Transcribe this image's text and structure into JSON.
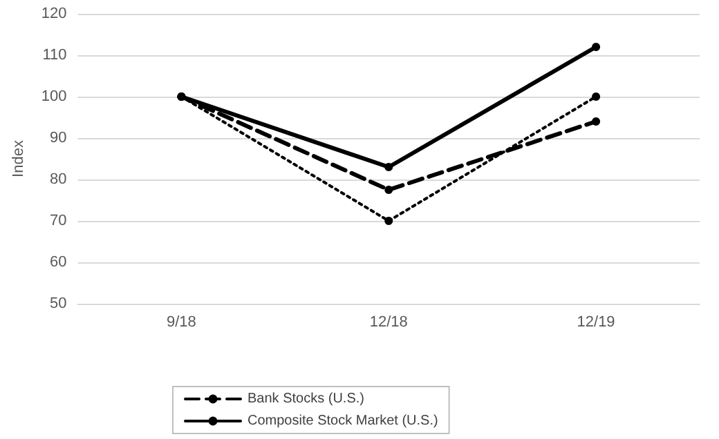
{
  "chart_data": {
    "type": "line",
    "ylabel": "Index",
    "categories": [
      "9/18",
      "12/18",
      "12/19"
    ],
    "series": [
      {
        "color": "#000000",
        "line_style": "dotted",
        "values": [
          100,
          70,
          100
        ]
      },
      {
        "name": "Bank Stocks (U.S.)",
        "color": "#000000",
        "line_style": "dashed",
        "values": [
          100,
          77.5,
          94
        ]
      },
      {
        "name": "Composite Stock Market (U.S.)",
        "color": "#000000",
        "line_style": "solid",
        "values": [
          100,
          83,
          112
        ]
      }
    ],
    "ylim": [
      50,
      120
    ],
    "yticks": [
      50,
      60,
      70,
      80,
      90,
      100,
      110,
      120
    ],
    "grid": "y",
    "legend": "bottom",
    "marker": "circle"
  }
}
